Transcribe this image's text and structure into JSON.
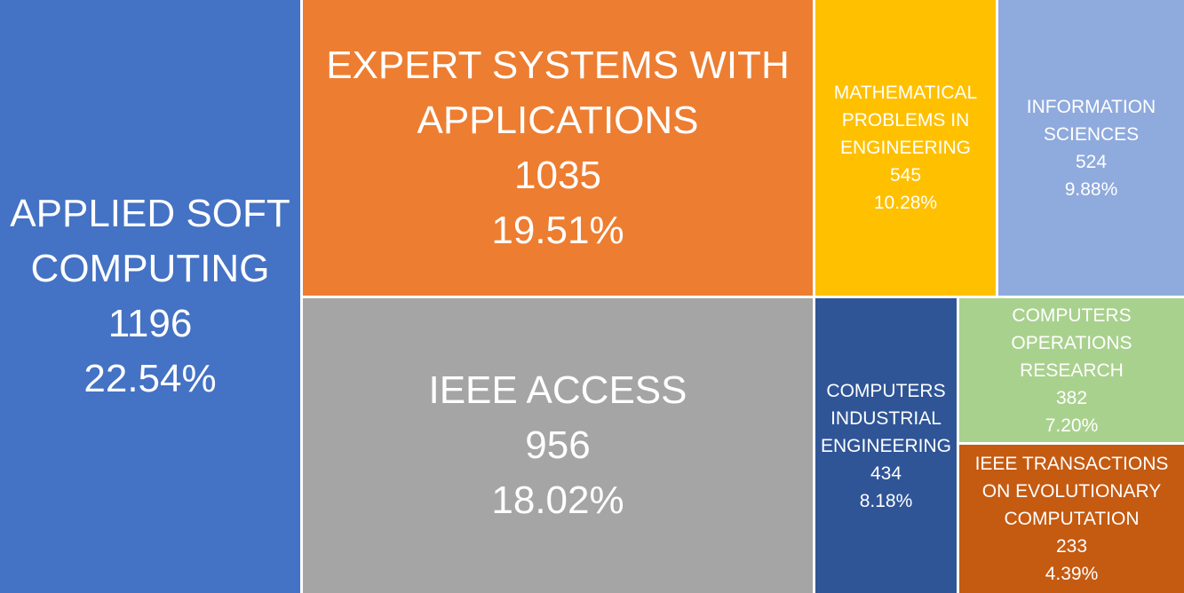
{
  "chart_data": {
    "type": "treemap",
    "items": [
      {
        "id": "applied-soft-computing",
        "label_lines": [
          "APPLIED SOFT",
          "COMPUTING"
        ],
        "value": 1196,
        "percent": "22.54%",
        "color": "#4472C4"
      },
      {
        "id": "expert-systems-with-applications",
        "label_lines": [
          "EXPERT SYSTEMS WITH",
          "APPLICATIONS"
        ],
        "value": 1035,
        "percent": "19.51%",
        "color": "#ED7D31"
      },
      {
        "id": "ieee-access",
        "label_lines": [
          "IEEE ACCESS"
        ],
        "value": 956,
        "percent": "18.02%",
        "color": "#A5A5A5"
      },
      {
        "id": "mathematical-problems-in-engineering",
        "label_lines": [
          "MATHEMATICAL",
          "PROBLEMS IN",
          "ENGINEERING"
        ],
        "value": 545,
        "percent": "10.28%",
        "color": "#FFC000"
      },
      {
        "id": "information-sciences",
        "label_lines": [
          "INFORMATION",
          "SCIENCES"
        ],
        "value": 524,
        "percent": "9.88%",
        "color": "#8FAADC"
      },
      {
        "id": "computers-industrial-engineering",
        "label_lines": [
          "COMPUTERS",
          "INDUSTRIAL",
          "ENGINEERING"
        ],
        "value": 434,
        "percent": "8.18%",
        "color": "#2F5597"
      },
      {
        "id": "computers-operations-research",
        "label_lines": [
          "COMPUTERS",
          "OPERATIONS",
          "RESEARCH"
        ],
        "value": 382,
        "percent": "7.20%",
        "color": "#A9D18E"
      },
      {
        "id": "ieee-transactions-on-evolutionary-computation",
        "label_lines": [
          "IEEE TRANSACTIONS",
          "ON EVOLUTIONARY",
          "COMPUTATION"
        ],
        "value": 233,
        "percent": "4.39%",
        "color": "#C55A11"
      }
    ]
  }
}
